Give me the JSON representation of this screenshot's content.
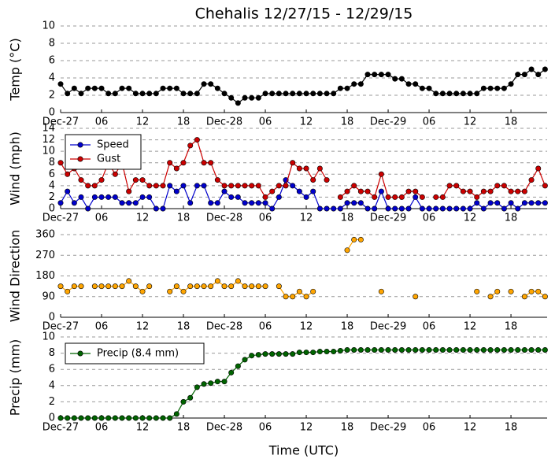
{
  "title": "Chehalis 12/27/15 - 12/29/15",
  "xlabel": "Time (UTC)",
  "chart_data": [
    {
      "type": "line",
      "ylabel": "Temp (°C)",
      "grid": true,
      "x": [
        0,
        1,
        2,
        3,
        4,
        5,
        6,
        7,
        8,
        9,
        10,
        11,
        12,
        13,
        14,
        15,
        16,
        17,
        18,
        19,
        20,
        21,
        22,
        23,
        24,
        25,
        26,
        27,
        28,
        29,
        30,
        31,
        32,
        33,
        34,
        35,
        36,
        37,
        38,
        39,
        40,
        41,
        42,
        43,
        44,
        45,
        46,
        47,
        48,
        49,
        50,
        51,
        52,
        53,
        54,
        55,
        56,
        57,
        58,
        59,
        60,
        61,
        62,
        63,
        64,
        65,
        66,
        67,
        68,
        69,
        70,
        71
      ],
      "xlim": [
        0,
        71.3
      ],
      "xticks": [
        {
          "value": 0,
          "label": "Dec-27"
        },
        {
          "value": 6,
          "label": "06"
        },
        {
          "value": 12,
          "label": "12"
        },
        {
          "value": 18,
          "label": "18"
        },
        {
          "value": 24,
          "label": "Dec-28"
        },
        {
          "value": 30,
          "label": "06"
        },
        {
          "value": 36,
          "label": "12"
        },
        {
          "value": 42,
          "label": "18"
        },
        {
          "value": 48,
          "label": "Dec-29"
        },
        {
          "value": 54,
          "label": "06"
        },
        {
          "value": 60,
          "label": "12"
        },
        {
          "value": 66,
          "label": "18"
        }
      ],
      "ylim": [
        0,
        10
      ],
      "yticks": [
        0,
        2,
        4,
        6,
        8,
        10
      ],
      "series": [
        {
          "name": "Temp",
          "color": "#000000",
          "values": [
            3.3,
            2.2,
            2.8,
            2.2,
            2.8,
            2.8,
            2.8,
            2.2,
            2.2,
            2.8,
            2.8,
            2.2,
            2.2,
            2.2,
            2.2,
            2.8,
            2.8,
            2.8,
            2.2,
            2.2,
            2.2,
            3.3,
            3.3,
            2.8,
            2.2,
            1.7,
            1.1,
            1.7,
            1.7,
            1.7,
            2.2,
            2.2,
            2.2,
            2.2,
            2.2,
            2.2,
            2.2,
            2.2,
            2.2,
            2.2,
            2.2,
            2.8,
            2.8,
            3.3,
            3.3,
            4.4,
            4.4,
            4.4,
            4.4,
            3.9,
            3.9,
            3.3,
            3.3,
            2.8,
            2.8,
            2.2,
            2.2,
            2.2,
            2.2,
            2.2,
            2.2,
            2.2,
            2.8,
            2.8,
            2.8,
            2.8,
            3.3,
            4.4,
            4.4,
            5.0,
            4.4,
            5.0
          ]
        }
      ]
    },
    {
      "type": "line",
      "ylabel": "Wind (mph)",
      "grid": true,
      "legend": "upper left",
      "x": [
        0,
        1,
        2,
        3,
        4,
        5,
        6,
        7,
        8,
        9,
        10,
        11,
        12,
        13,
        14,
        15,
        16,
        17,
        18,
        19,
        20,
        21,
        22,
        23,
        24,
        25,
        26,
        27,
        28,
        29,
        30,
        31,
        32,
        33,
        34,
        35,
        36,
        37,
        38,
        39,
        40,
        41,
        42,
        43,
        44,
        45,
        46,
        47,
        48,
        49,
        50,
        51,
        52,
        53,
        54,
        55,
        56,
        57,
        58,
        59,
        60,
        61,
        62,
        63,
        64,
        65,
        66,
        67,
        68,
        69,
        70,
        71
      ],
      "xlim": [
        0,
        71.3
      ],
      "xticks": [
        {
          "value": 0,
          "label": "Dec-27"
        },
        {
          "value": 6,
          "label": "06"
        },
        {
          "value": 12,
          "label": "12"
        },
        {
          "value": 18,
          "label": "18"
        },
        {
          "value": 24,
          "label": "Dec-28"
        },
        {
          "value": 30,
          "label": "06"
        },
        {
          "value": 36,
          "label": "12"
        },
        {
          "value": 42,
          "label": "18"
        },
        {
          "value": 48,
          "label": "Dec-29"
        },
        {
          "value": 54,
          "label": "06"
        },
        {
          "value": 60,
          "label": "12"
        },
        {
          "value": 66,
          "label": "18"
        }
      ],
      "ylim": [
        0,
        14
      ],
      "yticks": [
        0,
        2,
        4,
        6,
        8,
        10,
        12,
        14
      ],
      "series": [
        {
          "name": "Speed",
          "color": "#0000cc",
          "values": [
            1,
            3,
            1,
            2,
            0,
            2,
            2,
            2,
            2,
            1,
            1,
            1,
            2,
            2,
            0,
            0,
            4,
            3,
            4,
            1,
            4,
            4,
            1,
            1,
            3,
            2,
            2,
            1,
            1,
            1,
            1,
            0,
            2,
            5,
            4,
            3,
            2,
            3,
            0,
            0,
            0,
            0,
            1,
            1,
            1,
            0,
            0,
            3,
            0,
            0,
            0,
            0,
            2,
            0,
            0,
            0,
            0,
            0,
            0,
            0,
            0,
            1,
            0,
            1,
            1,
            0,
            1,
            0,
            1,
            1,
            1,
            1
          ]
        },
        {
          "name": "Gust",
          "color": "#cc0000",
          "values": [
            8,
            6,
            7,
            5,
            4,
            4,
            5,
            8,
            6,
            8,
            3,
            5,
            5,
            4,
            4,
            4,
            8,
            7,
            8,
            11,
            12,
            8,
            8,
            5,
            4,
            4,
            4,
            4,
            4,
            4,
            2,
            3,
            4,
            4,
            8,
            7,
            7,
            5,
            7,
            5,
            null,
            2,
            3,
            4,
            3,
            3,
            2,
            6,
            2,
            2,
            2,
            3,
            3,
            2,
            null,
            2,
            2,
            4,
            4,
            3,
            3,
            2,
            3,
            3,
            4,
            4,
            3,
            3,
            3,
            5,
            7,
            4
          ]
        }
      ]
    },
    {
      "type": "line",
      "ylabel": "Wind Direction",
      "grid": true,
      "x": [
        0,
        1,
        2,
        3,
        4,
        5,
        6,
        7,
        8,
        9,
        10,
        11,
        12,
        13,
        14,
        15,
        16,
        17,
        18,
        19,
        20,
        21,
        22,
        23,
        24,
        25,
        26,
        27,
        28,
        29,
        30,
        31,
        32,
        33,
        34,
        35,
        36,
        37,
        38,
        39,
        40,
        41,
        42,
        43,
        44,
        45,
        46,
        47,
        48,
        49,
        50,
        51,
        52,
        53,
        54,
        55,
        56,
        57,
        58,
        59,
        60,
        61,
        62,
        63,
        64,
        65,
        66,
        67,
        68,
        69,
        70,
        71
      ],
      "xlim": [
        0,
        71.3
      ],
      "xticks": [
        {
          "value": 0,
          "label": "Dec-27"
        },
        {
          "value": 6,
          "label": "06"
        },
        {
          "value": 12,
          "label": "12"
        },
        {
          "value": 18,
          "label": "18"
        },
        {
          "value": 24,
          "label": "Dec-28"
        },
        {
          "value": 30,
          "label": "06"
        },
        {
          "value": 36,
          "label": "12"
        },
        {
          "value": 42,
          "label": "18"
        },
        {
          "value": 48,
          "label": "Dec-29"
        },
        {
          "value": 54,
          "label": "06"
        },
        {
          "value": 60,
          "label": "12"
        },
        {
          "value": 66,
          "label": "18"
        }
      ],
      "ylim": [
        0,
        360
      ],
      "yticks": [
        0,
        90,
        180,
        270,
        360
      ],
      "series": [
        {
          "name": "Direction",
          "color": "#ffa500",
          "values": [
            135,
            112,
            135,
            135,
            null,
            135,
            135,
            135,
            135,
            135,
            158,
            135,
            112,
            135,
            null,
            null,
            112,
            135,
            112,
            135,
            135,
            135,
            135,
            158,
            135,
            135,
            158,
            135,
            135,
            135,
            135,
            null,
            135,
            90,
            90,
            112,
            90,
            112,
            null,
            null,
            null,
            null,
            292,
            338,
            338,
            null,
            null,
            112,
            null,
            null,
            null,
            null,
            90,
            null,
            null,
            null,
            null,
            null,
            null,
            null,
            null,
            112,
            null,
            90,
            112,
            null,
            112,
            null,
            90,
            112,
            112,
            90
          ]
        }
      ]
    },
    {
      "type": "line",
      "ylabel": "Precip (mm)",
      "grid": true,
      "legend": "upper left",
      "x": [
        0,
        1,
        2,
        3,
        4,
        5,
        6,
        7,
        8,
        9,
        10,
        11,
        12,
        13,
        14,
        15,
        16,
        17,
        18,
        19,
        20,
        21,
        22,
        23,
        24,
        25,
        26,
        27,
        28,
        29,
        30,
        31,
        32,
        33,
        34,
        35,
        36,
        37,
        38,
        39,
        40,
        41,
        42,
        43,
        44,
        45,
        46,
        47,
        48,
        49,
        50,
        51,
        52,
        53,
        54,
        55,
        56,
        57,
        58,
        59,
        60,
        61,
        62,
        63,
        64,
        65,
        66,
        67,
        68,
        69,
        70,
        71
      ],
      "xlim": [
        0,
        71.3
      ],
      "xticks": [
        {
          "value": 0,
          "label": "Dec-27"
        },
        {
          "value": 6,
          "label": "06"
        },
        {
          "value": 12,
          "label": "12"
        },
        {
          "value": 18,
          "label": "18"
        },
        {
          "value": 24,
          "label": "Dec-28"
        },
        {
          "value": 30,
          "label": "06"
        },
        {
          "value": 36,
          "label": "12"
        },
        {
          "value": 42,
          "label": "18"
        },
        {
          "value": 48,
          "label": "Dec-29"
        },
        {
          "value": 54,
          "label": "06"
        },
        {
          "value": 60,
          "label": "12"
        },
        {
          "value": 66,
          "label": "18"
        }
      ],
      "ylim": [
        0,
        10
      ],
      "yticks": [
        0,
        2,
        4,
        6,
        8,
        10
      ],
      "series": [
        {
          "name": "Precip (8.4 mm)",
          "color": "#006400",
          "values": [
            0,
            0,
            0,
            0,
            0,
            0,
            0,
            0,
            0,
            0,
            0,
            0,
            0,
            0,
            0,
            0,
            0,
            0.5,
            2.0,
            2.5,
            3.8,
            4.2,
            4.3,
            4.5,
            4.5,
            5.6,
            6.4,
            7.2,
            7.7,
            7.8,
            7.9,
            7.9,
            7.9,
            7.9,
            7.9,
            8.1,
            8.1,
            8.1,
            8.2,
            8.2,
            8.2,
            8.3,
            8.4,
            8.4,
            8.4,
            8.4,
            8.4,
            8.4,
            8.4,
            8.4,
            8.4,
            8.4,
            8.4,
            8.4,
            8.4,
            8.4,
            8.4,
            8.4,
            8.4,
            8.4,
            8.4,
            8.4,
            8.4,
            8.4,
            8.4,
            8.4,
            8.4,
            8.4,
            8.4,
            8.4,
            8.4,
            8.4
          ]
        }
      ]
    }
  ]
}
